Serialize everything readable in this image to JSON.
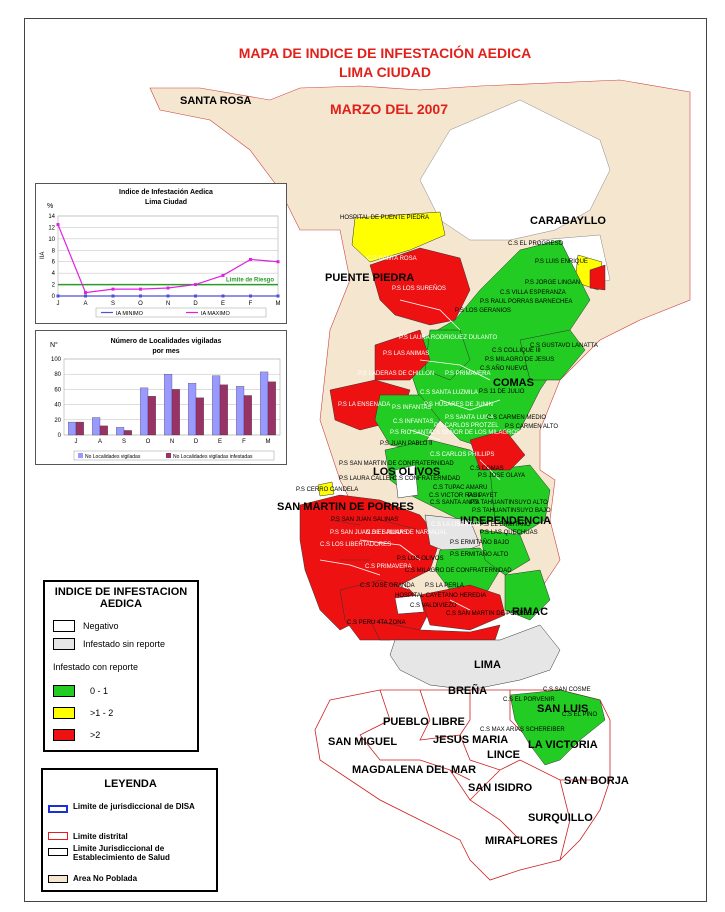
{
  "title": "MAPA DE INDICE DE INFESTACIÓN AEDICA",
  "title2": "LIMA CIUDAD",
  "subtitle": "MARZO DEL 2007",
  "colors": {
    "green": "#22cc22",
    "yellow": "#ffff00",
    "red": "#ee1111",
    "gray": "#e6e6e6",
    "beige": "#f5e6d0",
    "title_red": "#e0201a"
  },
  "districts": {
    "santa_rosa": "SANTA ROSA",
    "carabayllo": "CARABAYLLO",
    "puente_piedra": "PUENTE PIEDRA",
    "comas": "COMAS",
    "los_olivos": "LOS OLIVOS",
    "smp": "SAN MARTIN DE PORRES",
    "independencia": "INDEPENDENCIA",
    "rimac": "RIMAC",
    "lima": "LIMA",
    "brena": "BREÑA",
    "san_luis": "SAN LUIS",
    "pueblo_libre": "PUEBLO LIBRE",
    "san_miguel": "SAN MIGUEL",
    "jesus_maria": "JESUS MARIA",
    "la_victoria": "LA VICTORIA",
    "lince": "LINCE",
    "magdalena": "MAGDALENA DEL MAR",
    "san_isidro": "SAN ISIDRO",
    "san_borja": "SAN BORJA",
    "surquillo": "SURQUILLO",
    "miraflores": "MIRAFLORES"
  },
  "facilities": [
    "HOSPITAL DE PUENTE PIEDRA",
    "C.S EL PROGRESO",
    "C.S SANTA ROSA",
    "P.S LUIS ENRIQUE",
    "P.S LOS SUREÑOS",
    "P.S JORGE LINGAN",
    "C.S VILLA ESPERANZA",
    "P.S RAUL PORRAS BARNECHEA",
    "P.S LOS GERANIOS",
    "P.S LAURA RODRIGUEZ DULANTO",
    "C.S GUSTAVO LANATTA",
    "C.S COLLIQUE III",
    "P.S LAS ANIMAS",
    "P.S MILAGRO DE JESUS",
    "C.S AÑO NUEVO",
    "P.S LADERAS DE CHILLON",
    "P.S PRIMAVERA",
    "C.S SANTA LUZMILA",
    "P.S 11 DE JULIO",
    "P.S LA ENSENADA",
    "P.S INFANTAS",
    "P.S HUSARES DE JUNIN",
    "C.S INFANTAS",
    "P.S SANTA LUISA",
    "C.S CARMEN MEDIO",
    "P.S CARLOS PROTZEL",
    "P.S CARMEN ALTO",
    "P.S RIO SANTA",
    "C.S SEÑOR DE LOS MILAGROS",
    "P.S JUAN PABLO II",
    "C.S CARLOS PHILLIPS",
    "P.S SAN MARTIN DE CONFRATERNIDAD",
    "C.S COMAS",
    "P.S JOSE OLAYA",
    "P.S LAURA CALLER",
    "C.S CONFRATERNIDAD",
    "C.S TUPAC AMARU",
    "P.S CERRO CANDELA",
    "C.S VICTOR RAUL",
    "P.S PAYET",
    "C.S SANTA ANITA",
    "P.S TAHUANTINSUYO ALTO",
    "P.S TAHUANTINSUYO BAJO",
    "P.S SAN JUAN SALINAS",
    "C.S LA LIBERTAD",
    "P.S EL ERMITAÑO",
    "P.S LAS QUECHUAS",
    "P.S SAN JUAN DE SALINAS",
    "C.S EL PILAR DE NARANJAL",
    "C.S LOS LIBERTADORES",
    "P.S ERMITAÑO BAJO",
    "P.S ERMITAÑO ALTO",
    "P.S LOS OLIVOS",
    "C.S PRIMAVERA",
    "C.S MILAGRO DE CONFRATERNIDAD",
    "C.S JOSE GRANDA",
    "P.S LA PERLA",
    "HOSPITAL CAYETANO HEREDIA",
    "C.S VALDIVIEZO",
    "C.S SAN MARTIN DE PORRES",
    "C.S PERU 4TA ZONA",
    "C.S SAN COSME",
    "C.S EL PORVENIR",
    "C.S EL PINO",
    "C.S MAX ARIAS SCHEREIBER"
  ],
  "chart_data": [
    {
      "type": "line",
      "title": "Indice de Infestación Aedica",
      "subtitle": "Lima Ciudad",
      "unit": "%",
      "ylabel": "IIA",
      "ylim": [
        0,
        14
      ],
      "yticks": [
        "0",
        "2",
        "4",
        "6",
        "8",
        "10",
        "12",
        "14"
      ],
      "categories": [
        "J",
        "A",
        "S",
        "O",
        "N",
        "D",
        "E",
        "F",
        "M"
      ],
      "series": [
        {
          "name": "IA MINIMO",
          "color": "#4f4fd8",
          "values": [
            0,
            0,
            0,
            0,
            0,
            0,
            0,
            0,
            0
          ]
        },
        {
          "name": "IA MAXIMO",
          "color": "#e020e0",
          "values": [
            12.5,
            0.6,
            1.2,
            1.2,
            1.4,
            2,
            3.6,
            6.4,
            6
          ]
        }
      ],
      "threshold": {
        "label": "Limite de Riesgo",
        "value": 2,
        "color": "#2a9a2a"
      }
    },
    {
      "type": "bar",
      "title": "Número de Localidades vigiladas",
      "subtitle": "por mes",
      "unit": "N°",
      "ylim": [
        0,
        100
      ],
      "yticks": [
        "0",
        "20",
        "40",
        "60",
        "80",
        "100"
      ],
      "categories": [
        "J",
        "A",
        "S",
        "O",
        "N",
        "D",
        "E",
        "F",
        "M"
      ],
      "series": [
        {
          "name": "No Localidades vigiladas",
          "color": "#9999ff",
          "values": [
            17,
            23,
            10,
            62,
            80,
            68,
            78,
            64,
            83
          ]
        },
        {
          "name": "No Localidades vigiladas infestadas",
          "color": "#993366",
          "values": [
            17,
            12,
            6,
            51,
            60,
            49,
            66,
            52,
            70
          ]
        }
      ]
    }
  ],
  "legend_iia": {
    "title": "INDICE DE INFESTACION AEDICA",
    "negativo": "Negativo",
    "sin_reporte": "Infestado sin reporte",
    "con_reporte": "Infestado con reporte",
    "range1": "0 - 1",
    "range2": ">1 - 2",
    "range3": ">2"
  },
  "legend_lines": {
    "title": "LEYENDA",
    "disa": "Limite de jurisdiccional de DISA",
    "distrital": "Limite distrital",
    "establecimiento": "Limite Jurisdiccional de Establecimiento de Salud",
    "no_poblada": "Area No Poblada"
  }
}
